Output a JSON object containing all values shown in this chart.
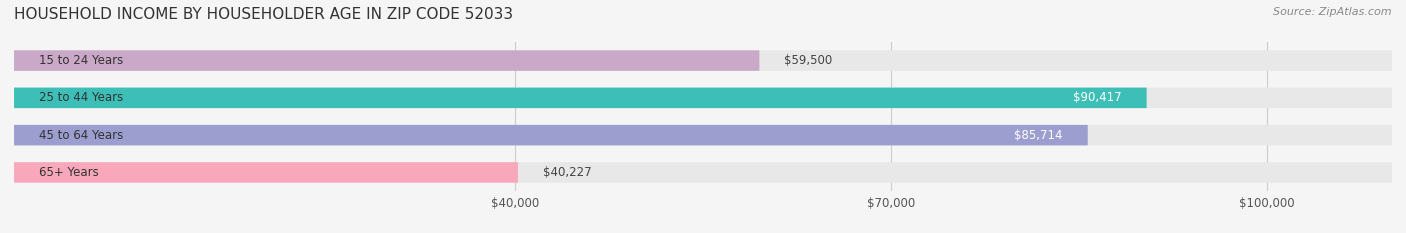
{
  "title": "HOUSEHOLD INCOME BY HOUSEHOLDER AGE IN ZIP CODE 52033",
  "source": "Source: ZipAtlas.com",
  "categories": [
    "15 to 24 Years",
    "25 to 44 Years",
    "45 to 64 Years",
    "65+ Years"
  ],
  "values": [
    59500,
    90417,
    85714,
    40227
  ],
  "bar_colors": [
    "#c9a8c8",
    "#3dbfb8",
    "#9b9ece",
    "#f9a8bb"
  ],
  "bar_bg_color": "#e8e8e8",
  "value_labels": [
    "$59,500",
    "$90,417",
    "$85,714",
    "$40,227"
  ],
  "xmin": 0,
  "xmax": 110000,
  "xticks": [
    40000,
    70000,
    100000
  ],
  "xtick_labels": [
    "$40,000",
    "$70,000",
    "$100,000"
  ],
  "bar_height": 0.55,
  "title_fontsize": 11,
  "label_fontsize": 8.5,
  "tick_fontsize": 8.5,
  "source_fontsize": 8
}
